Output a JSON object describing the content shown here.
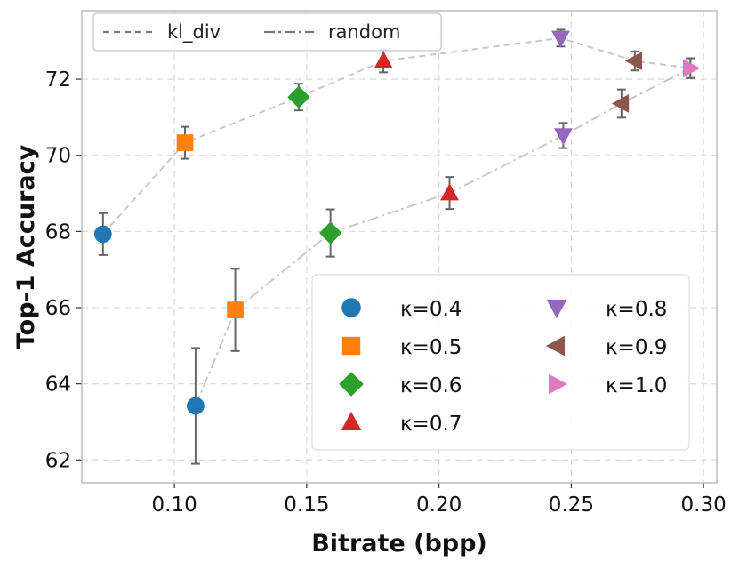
{
  "chart_data": {
    "type": "scatter",
    "title": "",
    "xlabel": "Bitrate (bpp)",
    "ylabel": "Top-1 Accuracy",
    "xlim": [
      0.065,
      0.305
    ],
    "ylim": [
      61.4,
      73.8
    ],
    "xticks": [
      0.1,
      0.15,
      0.2,
      0.25,
      0.3
    ],
    "xtick_labels": [
      "0.10",
      "0.15",
      "0.20",
      "0.25",
      "0.30"
    ],
    "yticks": [
      62,
      64,
      66,
      68,
      70,
      72
    ],
    "ytick_labels": [
      "62",
      "64",
      "66",
      "68",
      "70",
      "72"
    ],
    "grid": true,
    "lines": [
      {
        "name": "kl_div",
        "linestyle": "dashed",
        "color": "#c8c8c8",
        "points": [
          {
            "kappa": "0.4",
            "x": 0.073,
            "y": 67.93,
            "err": 0.55
          },
          {
            "kappa": "0.5",
            "x": 0.104,
            "y": 70.33,
            "err": 0.42
          },
          {
            "kappa": "0.6",
            "x": 0.147,
            "y": 71.53,
            "err": 0.35
          },
          {
            "kappa": "0.7",
            "x": 0.179,
            "y": 72.48,
            "err": 0.3
          },
          {
            "kappa": "0.8",
            "x": 0.246,
            "y": 73.08,
            "err": 0.22
          },
          {
            "kappa": "0.9",
            "x": 0.274,
            "y": 72.48,
            "err": 0.25
          },
          {
            "kappa": "1.0",
            "x": 0.295,
            "y": 72.29,
            "err": 0.26
          }
        ]
      },
      {
        "name": "random",
        "linestyle": "dashdot",
        "color": "#c8c8c8",
        "points": [
          {
            "kappa": "0.4",
            "x": 0.108,
            "y": 63.42,
            "err": 1.52
          },
          {
            "kappa": "0.5",
            "x": 0.123,
            "y": 65.94,
            "err": 1.08
          },
          {
            "kappa": "0.6",
            "x": 0.159,
            "y": 67.96,
            "err": 0.62
          },
          {
            "kappa": "0.7",
            "x": 0.204,
            "y": 69.01,
            "err": 0.42
          },
          {
            "kappa": "0.8",
            "x": 0.247,
            "y": 70.52,
            "err": 0.33
          },
          {
            "kappa": "0.9",
            "x": 0.269,
            "y": 71.36,
            "err": 0.37
          },
          {
            "kappa": "1.0",
            "x": 0.295,
            "y": 72.29,
            "err": 0.26
          }
        ]
      }
    ],
    "markers": [
      {
        "kappa": "0.4",
        "label": "κ=0.4",
        "shape": "circle",
        "color": "#1f77b4"
      },
      {
        "kappa": "0.5",
        "label": "κ=0.5",
        "shape": "square",
        "color": "#ff7f0e"
      },
      {
        "kappa": "0.6",
        "label": "κ=0.6",
        "shape": "diamond",
        "color": "#2ca02c"
      },
      {
        "kappa": "0.7",
        "label": "κ=0.7",
        "shape": "triangle-up",
        "color": "#d62728"
      },
      {
        "kappa": "0.8",
        "label": "κ=0.8",
        "shape": "triangle-down",
        "color": "#9467bd"
      },
      {
        "kappa": "0.9",
        "label": "κ=0.9",
        "shape": "triangle-left",
        "color": "#8c564b"
      },
      {
        "kappa": "1.0",
        "label": "κ=1.0",
        "shape": "triangle-right",
        "color": "#e377c2"
      }
    ],
    "line_legend": {
      "position": "top-left",
      "entries": [
        "kl_div",
        "random"
      ]
    },
    "marker_legend": {
      "position": "lower-right",
      "columns": 2
    }
  }
}
